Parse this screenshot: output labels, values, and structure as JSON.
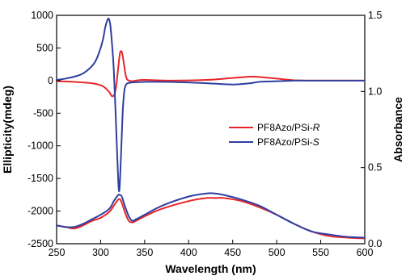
{
  "chart_data": {
    "type": "line",
    "xlabel": "Wavelength (nm)",
    "ylabel_left": "Ellipticity(mdeg)",
    "ylabel_right": "Absorbance",
    "xlim": [
      250,
      600
    ],
    "ylim_left": [
      -2500,
      1000
    ],
    "ylim_right": [
      0.0,
      1.5
    ],
    "x_ticks": [
      250,
      300,
      350,
      400,
      450,
      500,
      550,
      600
    ],
    "y_left_ticks": [
      1000,
      500,
      0,
      -500,
      -1000,
      -1500,
      -2000,
      -2500
    ],
    "y_right_ticks": [
      1.5,
      1.0,
      0.5,
      0.0
    ],
    "y_right_tick_labels": [
      "1.5",
      "1.0",
      "0.5",
      "0.0"
    ],
    "legend_position": "center-right",
    "legend": [
      {
        "prefix": "PF8Azo/PSi-",
        "suffix": "R",
        "color": "#e8262a"
      },
      {
        "prefix": "PF8Azo/PSi-",
        "suffix": "S",
        "color": "#2e3fa0"
      }
    ],
    "series": [
      {
        "name": "PF8Azo/PSi-R",
        "axis": "left",
        "color": "#e8262a",
        "x": [
          250,
          270,
          290,
          300,
          305,
          310,
          313,
          316,
          318,
          320,
          322,
          324,
          326,
          328,
          330,
          335,
          340,
          350,
          380,
          420,
          450,
          470,
          480,
          500,
          520,
          540,
          560,
          600
        ],
        "y": [
          -10,
          -20,
          -40,
          -70,
          -110,
          -180,
          -240,
          -200,
          -50,
          200,
          420,
          440,
          300,
          120,
          20,
          -10,
          0,
          10,
          0,
          10,
          40,
          60,
          55,
          30,
          5,
          0,
          0,
          0
        ]
      },
      {
        "name": "PF8Azo/PSi-S",
        "axis": "left",
        "color": "#2e3fa0",
        "x": [
          250,
          260,
          270,
          280,
          290,
          295,
          300,
          303,
          305,
          307,
          309,
          311,
          313,
          315,
          317,
          319,
          321,
          323,
          325,
          327,
          329,
          331,
          335,
          340,
          350,
          380,
          420,
          450,
          470,
          480,
          500,
          520,
          540,
          560,
          600
        ],
        "y": [
          10,
          30,
          60,
          110,
          220,
          320,
          500,
          650,
          800,
          900,
          950,
          850,
          550,
          150,
          -500,
          -1200,
          -1700,
          -1200,
          -500,
          -150,
          -60,
          -40,
          -30,
          -25,
          -20,
          -20,
          -40,
          -60,
          -40,
          -20,
          -10,
          0,
          0,
          0,
          0
        ]
      },
      {
        "name": "PF8Azo/PSi-R",
        "axis": "right",
        "color": "#e8262a",
        "x": [
          250,
          260,
          270,
          280,
          290,
          300,
          310,
          315,
          320,
          322,
          324,
          328,
          332,
          336,
          340,
          350,
          370,
          400,
          420,
          430,
          440,
          460,
          480,
          500,
          520,
          540,
          560,
          580,
          600
        ],
        "y": [
          0.12,
          0.11,
          0.1,
          0.12,
          0.15,
          0.17,
          0.21,
          0.25,
          0.29,
          0.29,
          0.27,
          0.2,
          0.15,
          0.14,
          0.15,
          0.18,
          0.23,
          0.28,
          0.3,
          0.3,
          0.3,
          0.28,
          0.24,
          0.19,
          0.13,
          0.08,
          0.05,
          0.04,
          0.035
        ]
      },
      {
        "name": "PF8Azo/PSi-S",
        "axis": "right",
        "color": "#2e3fa0",
        "x": [
          250,
          260,
          270,
          280,
          290,
          300,
          310,
          315,
          320,
          322,
          324,
          328,
          332,
          336,
          340,
          350,
          370,
          400,
          420,
          430,
          440,
          460,
          480,
          500,
          520,
          540,
          560,
          580,
          600
        ],
        "y": [
          0.12,
          0.11,
          0.11,
          0.13,
          0.16,
          0.19,
          0.23,
          0.28,
          0.32,
          0.32,
          0.31,
          0.24,
          0.18,
          0.15,
          0.16,
          0.19,
          0.25,
          0.31,
          0.33,
          0.33,
          0.32,
          0.29,
          0.25,
          0.19,
          0.13,
          0.08,
          0.06,
          0.045,
          0.04
        ]
      }
    ]
  }
}
